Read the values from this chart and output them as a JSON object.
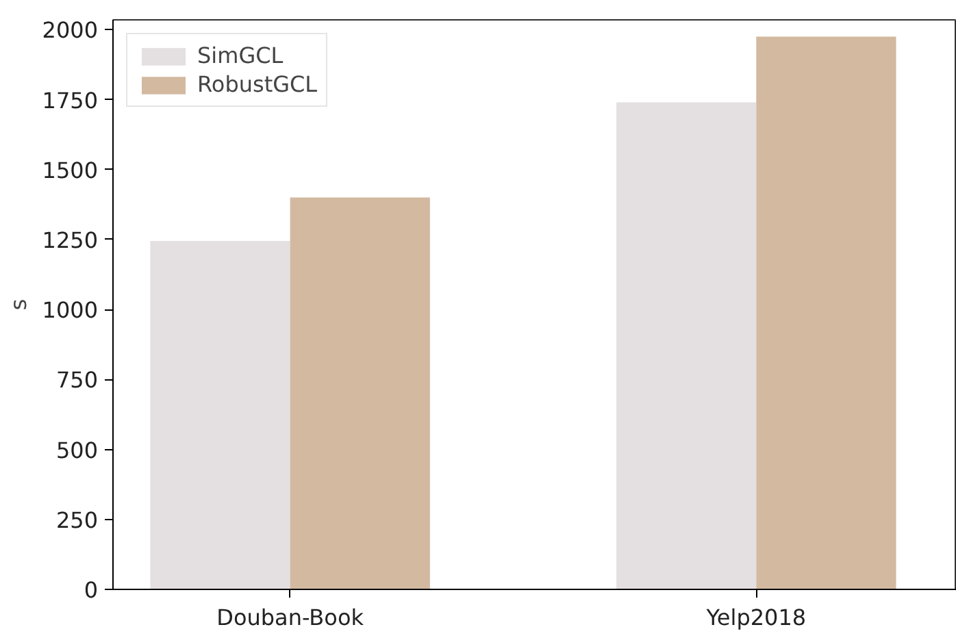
{
  "chart_data": {
    "type": "bar",
    "ylabel": "s",
    "categories": [
      "Douban-Book",
      "Yelp2018"
    ],
    "series": [
      {
        "name": "SimGCL",
        "color": "#e4dfe0",
        "values": [
          1245,
          1740
        ]
      },
      {
        "name": "RobustGCL",
        "color": "#d2b9a0",
        "values": [
          1400,
          1975
        ]
      }
    ],
    "ylim": [
      0,
      2035
    ],
    "yticks": [
      0,
      250,
      500,
      750,
      1000,
      1250,
      1500,
      1750,
      2000
    ],
    "grid": false,
    "legend": "top left"
  }
}
